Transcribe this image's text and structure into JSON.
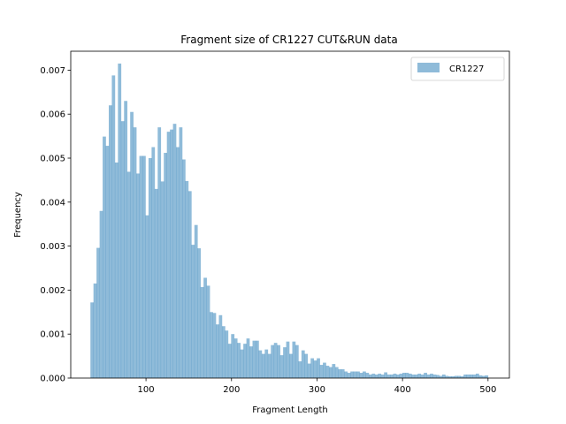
{
  "chart_data": {
    "type": "bar",
    "title": "Fragment size of CR1227 CUT&RUN data",
    "xlabel": "Fragment Length",
    "ylabel": "Frequency",
    "xlim": [
      12,
      525
    ],
    "ylim": [
      0,
      0.00743
    ],
    "xticks": [
      100,
      200,
      300,
      400,
      500
    ],
    "xtick_labels": [
      "100",
      "200",
      "300",
      "400",
      "500"
    ],
    "yticks": [
      0,
      0.001,
      0.002,
      0.003,
      0.004,
      0.005,
      0.006,
      0.007
    ],
    "ytick_labels": [
      "0.000",
      "0.001",
      "0.002",
      "0.003",
      "0.004",
      "0.005",
      "0.006",
      "0.007"
    ],
    "legend": {
      "label": "CR1227",
      "placement": "top-right"
    },
    "bar_color": "#1f77b4",
    "bar_alpha": 0.5,
    "bin_start": 35,
    "bin_end": 500,
    "values": [
      0.00172,
      0.00215,
      0.00296,
      0.0038,
      0.00549,
      0.00528,
      0.0062,
      0.00688,
      0.0049,
      0.00715,
      0.00584,
      0.0063,
      0.00469,
      0.00605,
      0.0057,
      0.00465,
      0.00505,
      0.00505,
      0.0037,
      0.005,
      0.00525,
      0.0043,
      0.0057,
      0.00447,
      0.00512,
      0.0056,
      0.00565,
      0.00578,
      0.00525,
      0.0057,
      0.00497,
      0.00448,
      0.00425,
      0.00303,
      0.00348,
      0.00295,
      0.00207,
      0.00228,
      0.0021,
      0.0015,
      0.00148,
      0.00122,
      0.00143,
      0.00118,
      0.00108,
      0.00078,
      0.001,
      0.0009,
      0.0008,
      0.00065,
      0.00078,
      0.0009,
      0.00072,
      0.00085,
      0.00085,
      0.00063,
      0.00055,
      0.00065,
      0.00055,
      0.00075,
      0.0008,
      0.00075,
      0.00052,
      0.0007,
      0.00083,
      0.00055,
      0.00083,
      0.00075,
      0.00038,
      0.00063,
      0.00055,
      0.00033,
      0.00045,
      0.0004,
      0.00045,
      0.0003,
      0.00035,
      0.00028,
      0.00025,
      0.00032,
      0.00025,
      0.0002,
      0.0002,
      0.00015,
      0.00012,
      0.00015,
      0.00015,
      0.00015,
      0.00012,
      0.00015,
      0.00012,
      8e-05,
      0.0001,
      8e-05,
      0.0001,
      8e-05,
      0.00013,
      8e-05,
      8e-05,
      0.0001,
      8e-05,
      0.0001,
      0.00012,
      0.00012,
      0.0001,
      8e-05,
      8e-05,
      0.0001,
      8e-05,
      0.00012,
      8e-05,
      0.0001,
      8e-05,
      7e-05,
      5e-05,
      8e-05,
      5e-05,
      4e-05,
      4e-05,
      5e-05,
      5e-05,
      4e-05,
      8e-05,
      8e-05,
      8e-05,
      8e-05,
      0.0001,
      6e-05,
      5e-05,
      6e-05
    ]
  }
}
